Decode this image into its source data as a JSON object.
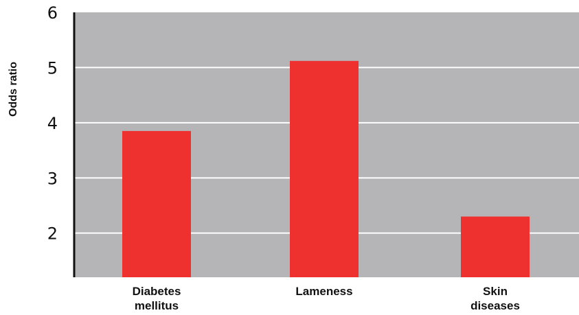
{
  "chart_data": {
    "type": "bar",
    "categories": [
      [
        "Diabetes",
        "mellitus"
      ],
      [
        "Lameness"
      ],
      [
        "Skin",
        "diseases"
      ]
    ],
    "values": [
      3.85,
      5.12,
      2.3
    ],
    "ylabel": "Odds ratio",
    "yticks": [
      2,
      3,
      4,
      5,
      6
    ],
    "ylim": [
      1.2,
      6
    ],
    "grid": true,
    "colors": {
      "bar": "#ee302e",
      "plot_bg": "#b5b5b8",
      "grid": "#ffffff",
      "axis": "#111111"
    }
  }
}
